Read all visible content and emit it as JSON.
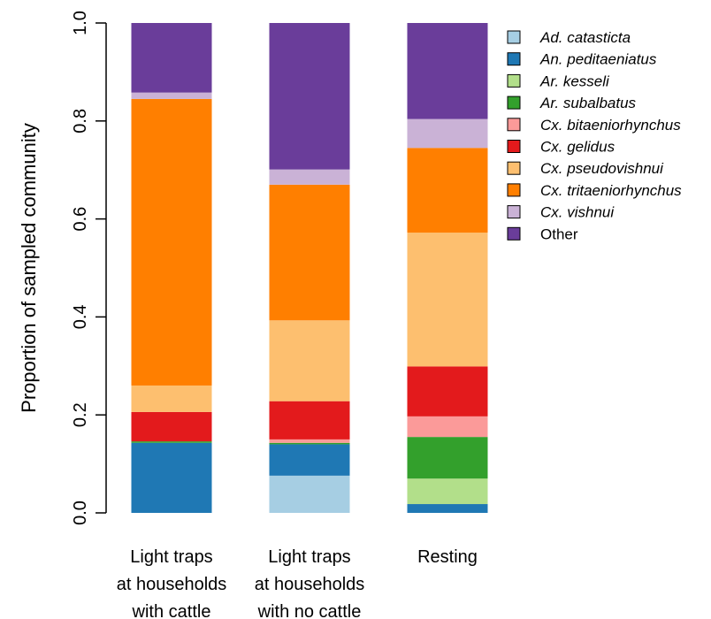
{
  "chart_data": {
    "type": "bar",
    "stacked": true,
    "ylabel": "Proportion of sampled community",
    "ylim": [
      0,
      1
    ],
    "yticks": [
      "0.0",
      "0.2",
      "0.4",
      "0.6",
      "0.8",
      "1.0"
    ],
    "categories": [
      [
        "Light traps",
        "at households",
        "with cattle"
      ],
      [
        "Light traps",
        "at households",
        "with no cattle"
      ],
      [
        "Resting"
      ]
    ],
    "legend_position": "top-right",
    "series": [
      {
        "name": "Ad. catasticta",
        "italic": true,
        "color": "#a6cee3",
        "values": [
          0.0,
          0.076,
          0.0
        ]
      },
      {
        "name": "An. peditaeniatus",
        "italic": true,
        "color": "#1f78b4",
        "values": [
          0.143,
          0.064,
          0.018
        ]
      },
      {
        "name": "Ar. kesseli",
        "italic": true,
        "color": "#b2df8a",
        "values": [
          0.0,
          0.0,
          0.052
        ]
      },
      {
        "name": "Ar. subalbatus",
        "italic": true,
        "color": "#33a02c",
        "values": [
          0.003,
          0.003,
          0.085
        ]
      },
      {
        "name": "Cx. bitaeniorhynchus",
        "italic": true,
        "color": "#fb9a99",
        "values": [
          0.0,
          0.007,
          0.042
        ]
      },
      {
        "name": "Cx. gelidus",
        "italic": true,
        "color": "#e31a1c",
        "values": [
          0.06,
          0.078,
          0.102
        ]
      },
      {
        "name": "Cx. pseudovishnui",
        "italic": true,
        "color": "#fdbf6f",
        "values": [
          0.054,
          0.165,
          0.273
        ]
      },
      {
        "name": "Cx. tritaeniorhynchus",
        "italic": true,
        "color": "#ff7f00",
        "values": [
          0.585,
          0.277,
          0.173
        ]
      },
      {
        "name": "Cx. vishnui",
        "italic": true,
        "color": "#cab2d6",
        "values": [
          0.013,
          0.031,
          0.059
        ]
      },
      {
        "name": "Other",
        "italic": false,
        "color": "#6a3d9a",
        "values": [
          0.142,
          0.299,
          0.196
        ]
      }
    ]
  }
}
